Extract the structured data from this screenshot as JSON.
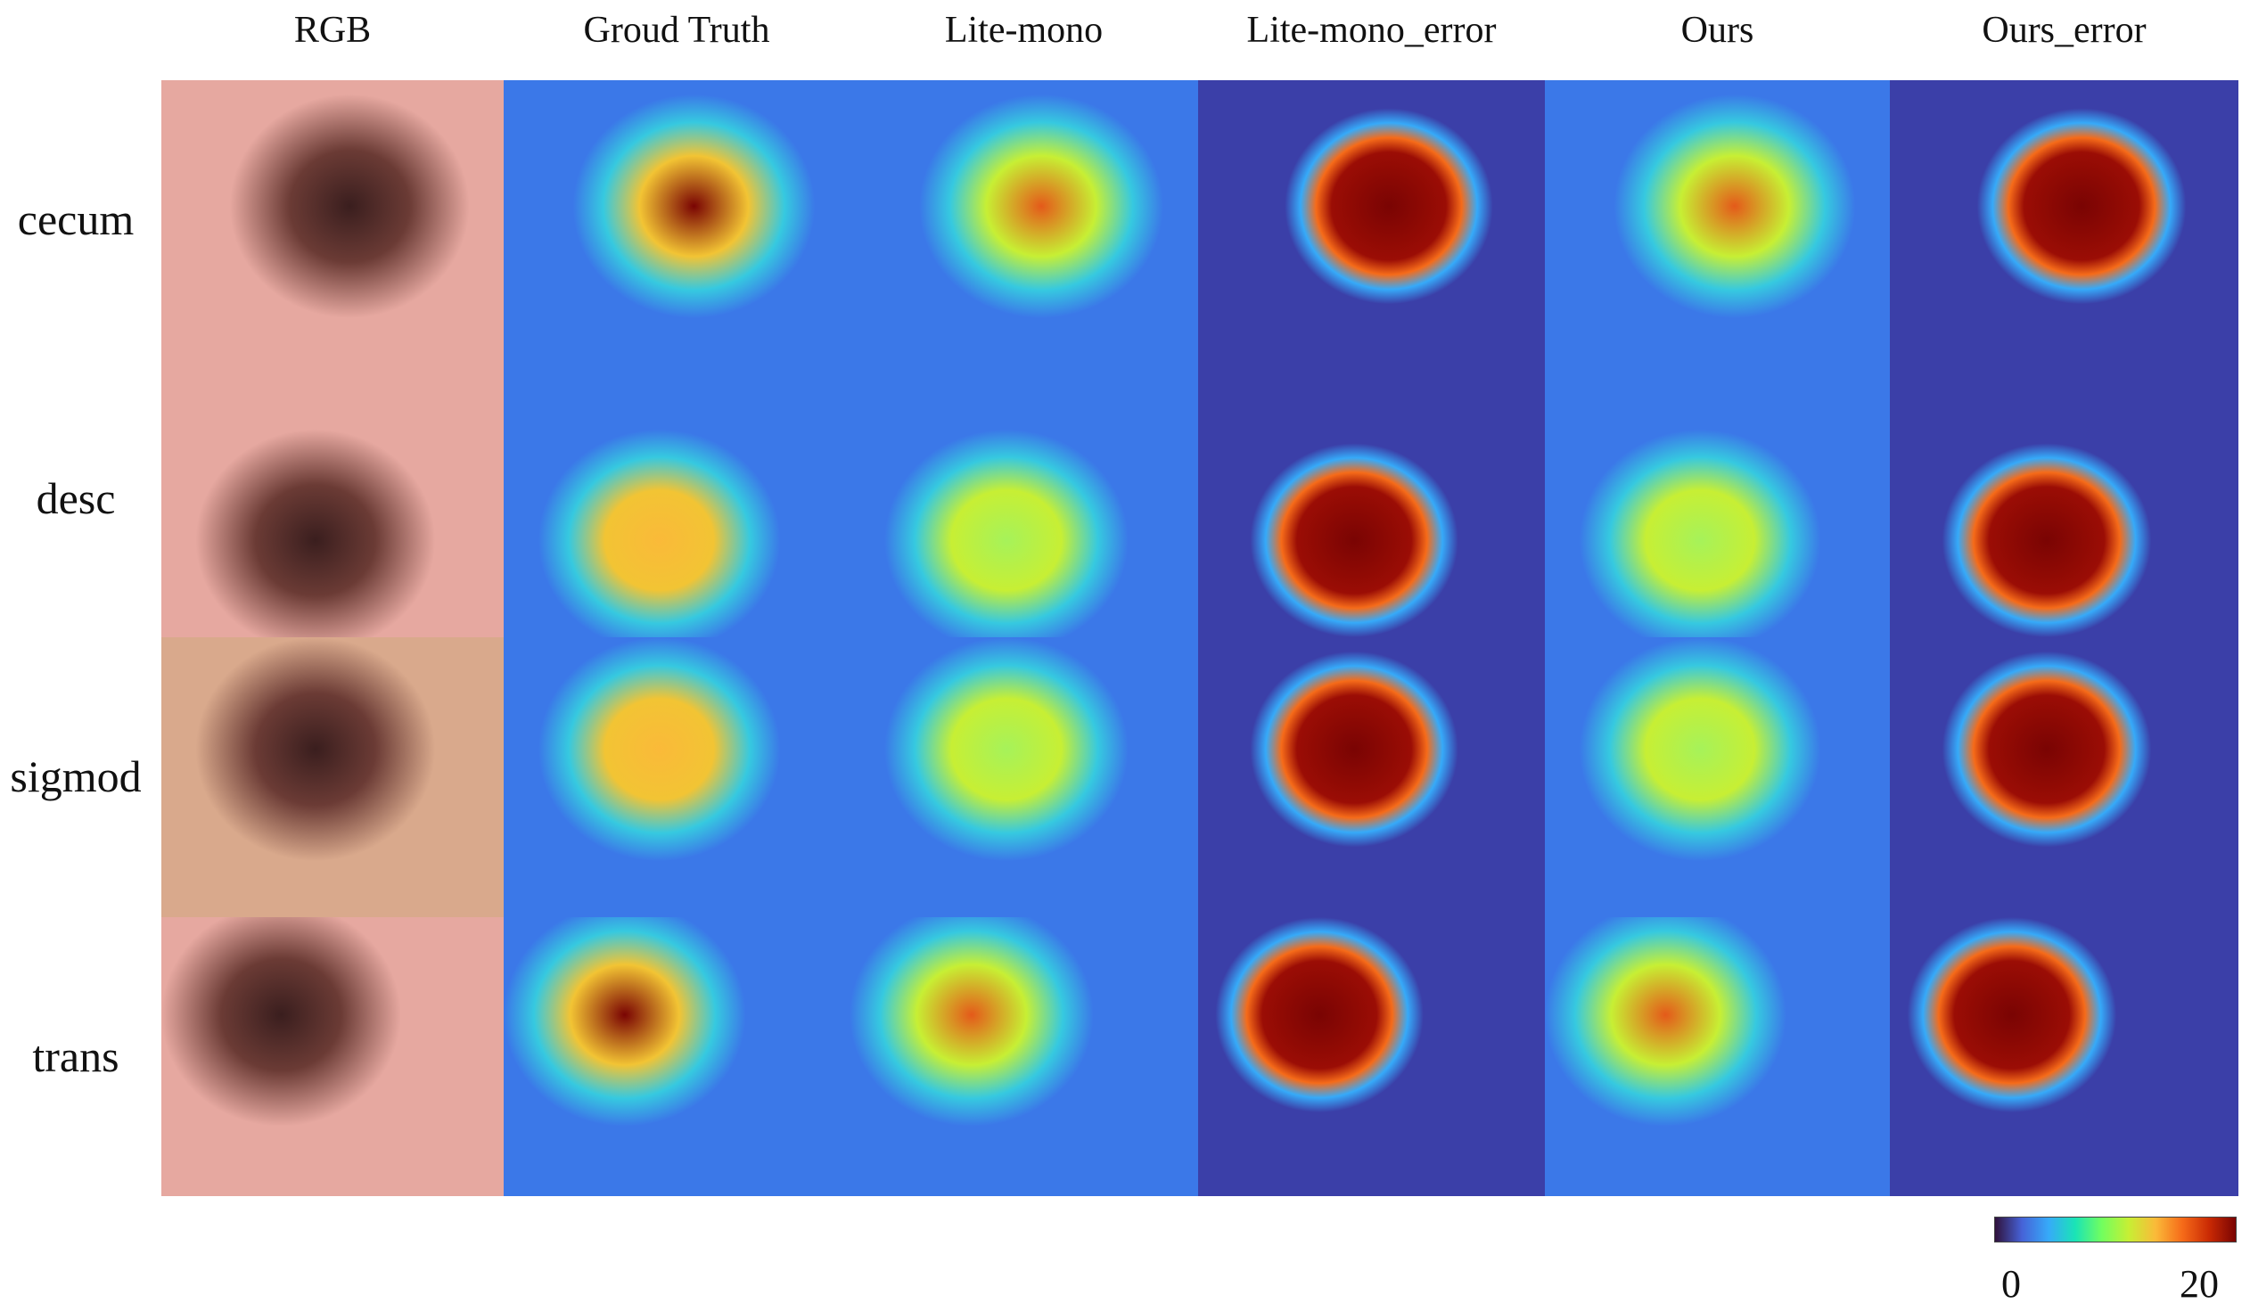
{
  "columns": [
    "RGB",
    "Groud Truth",
    "Lite-mono",
    "Lite-mono_error",
    "Ours",
    "Ours_error"
  ],
  "rows": [
    "cecum",
    "desc",
    "sigmod",
    "trans"
  ],
  "colorbar": {
    "min_label": "0",
    "max_label": "20"
  }
}
